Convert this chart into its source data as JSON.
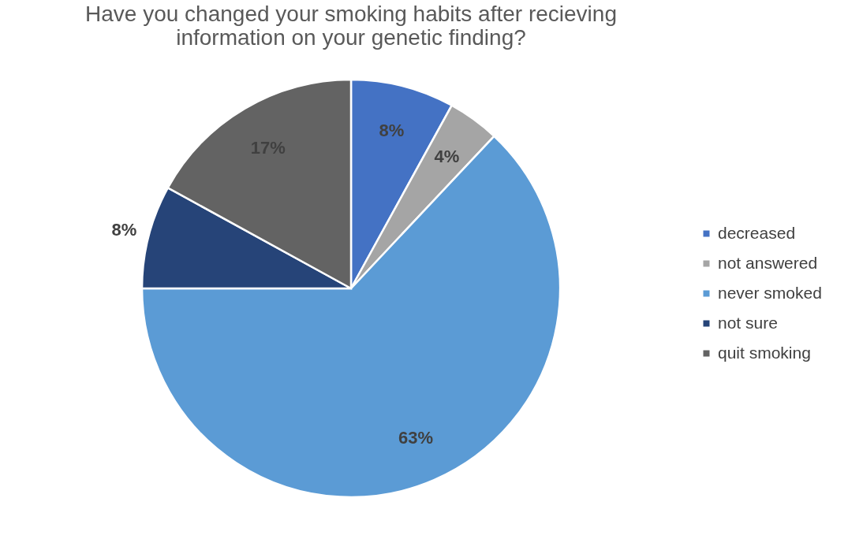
{
  "chart_data": {
    "type": "pie",
    "title": [
      "Have you changed your smoking habits after recieving",
      "information on your genetic finding?"
    ],
    "categories": [
      "decreased",
      "not answered",
      "never smoked",
      "not sure",
      "quit smoking"
    ],
    "values": [
      8,
      4,
      63,
      8,
      17
    ],
    "colors": [
      "#4472c4",
      "#a5a5a5",
      "#5b9bd5",
      "#264478",
      "#636363"
    ],
    "value_labels": [
      "8%",
      "4%",
      "63%",
      "8%",
      "17%"
    ],
    "legend": "right"
  }
}
